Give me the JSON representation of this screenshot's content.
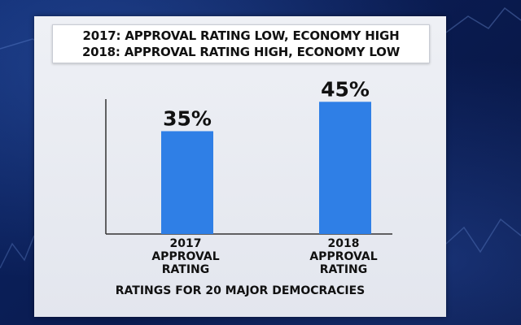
{
  "headline": {
    "line1": "2017: APPROVAL RATING LOW, ECONOMY HIGH",
    "line2": "2018: APPROVAL RATING HIGH, ECONOMY LOW"
  },
  "chart_data": {
    "type": "bar",
    "categories": [
      "2017\nAPPROVAL\nRATING",
      "2018\nAPPROVAL\nRATING"
    ],
    "values": [
      35,
      45
    ],
    "value_labels": [
      "35%",
      "45%"
    ],
    "ylim": [
      0,
      52
    ],
    "grid": false,
    "colors": {
      "bar": "#2f7fe6",
      "axis": "#333333"
    }
  },
  "footer": "RATINGS FOR 20 MAJOR DEMOCRACIES"
}
